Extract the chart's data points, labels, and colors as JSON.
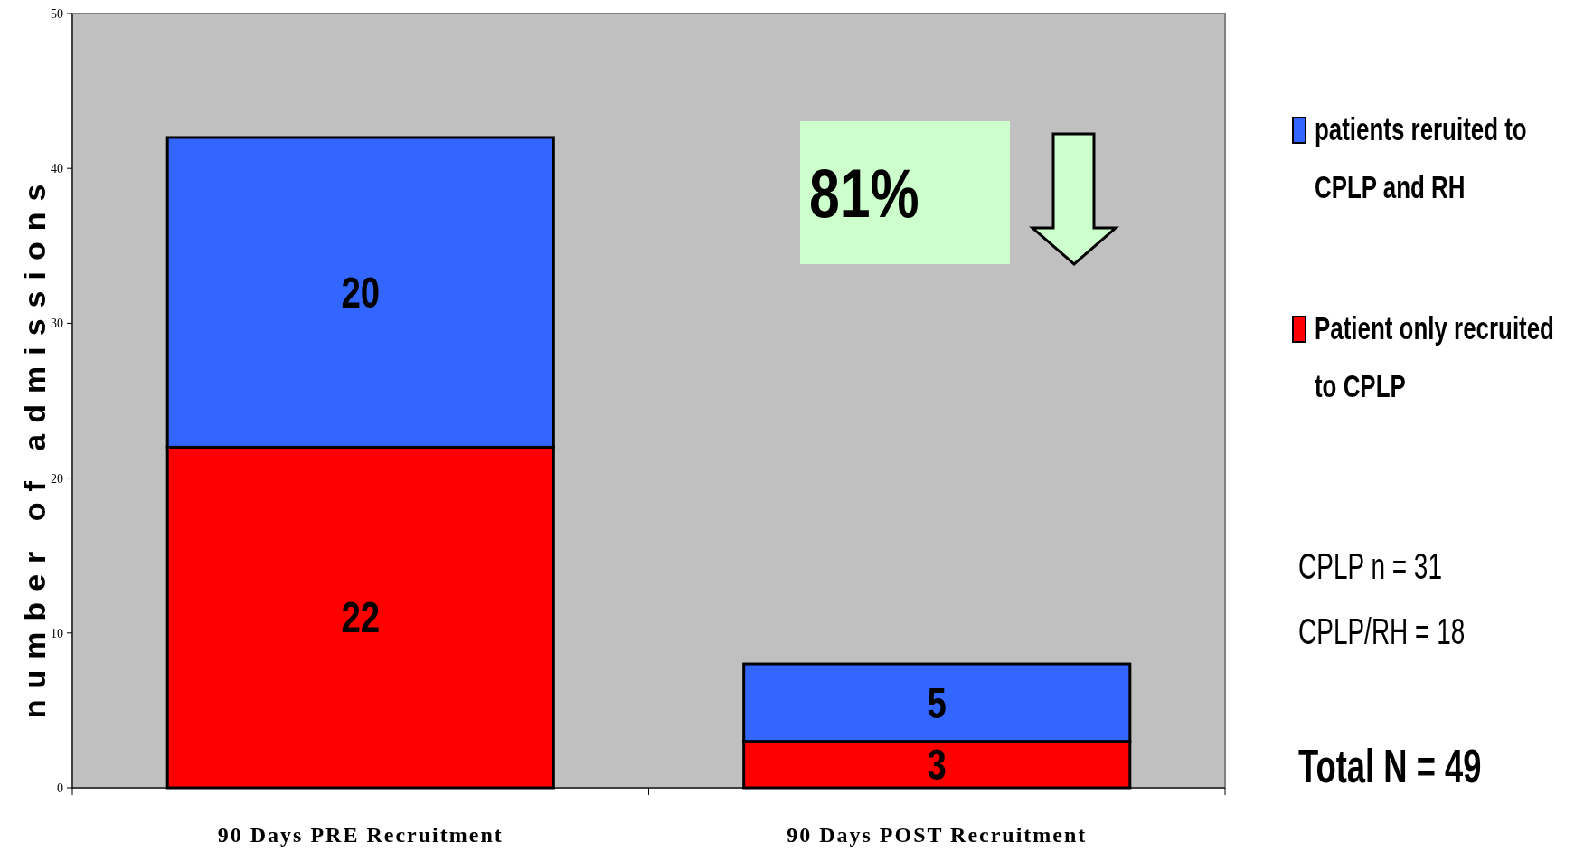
{
  "chart_data": {
    "type": "bar",
    "stacked": true,
    "ylabel": "number of admissions",
    "categories": [
      "90 Days PRE Recruitment",
      "90 Days POST Recruitment"
    ],
    "series": [
      {
        "name": "Patient only recruited to CPLP",
        "color": "#ff0000",
        "values": [
          22,
          3
        ]
      },
      {
        "name": "patients reruited to CPLP and RH",
        "color": "#3366ff",
        "values": [
          20,
          5
        ]
      }
    ],
    "data_labels": true,
    "ylim": [
      0,
      50
    ],
    "yticks": [
      0,
      10,
      20,
      30,
      40,
      50
    ],
    "grid": false,
    "legend": "right",
    "annotations": [
      "81%",
      "CPLP n = 31",
      "CPLP/RH = 18",
      "Total N = 49"
    ]
  }
}
